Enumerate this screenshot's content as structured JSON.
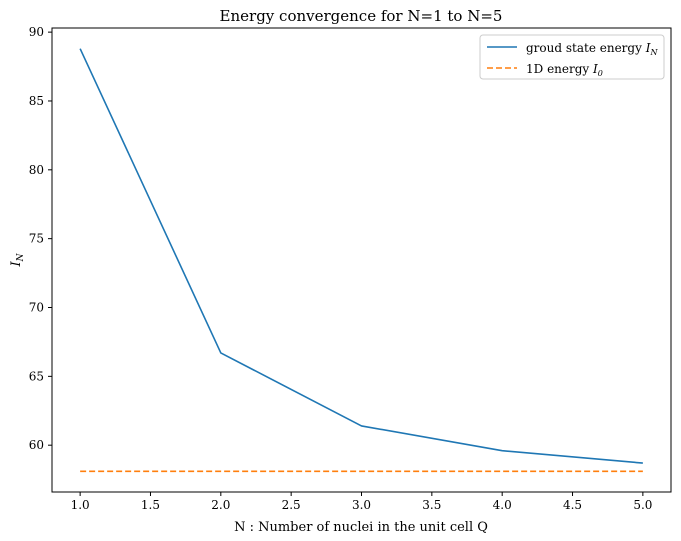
{
  "chart_data": {
    "type": "line",
    "title": "Energy convergence for N=1 to N=5",
    "xlabel": "N : Number of nuclei in the unit cell Q",
    "ylabel": {
      "main": "I",
      "sub": "N"
    },
    "xlim": [
      0.8,
      5.2
    ],
    "ylim": [
      56.6,
      90.3
    ],
    "xticks": [
      1.0,
      1.5,
      2.0,
      2.5,
      3.0,
      3.5,
      4.0,
      4.5,
      5.0
    ],
    "yticks": [
      60,
      65,
      70,
      75,
      80,
      85,
      90
    ],
    "legend_position": "top-right",
    "grid": false,
    "series": [
      {
        "name": "groud state energy",
        "legend_symbol": "I",
        "legend_sub": "N",
        "style": "solid",
        "color": "#1f77b4",
        "x": [
          1,
          2,
          3,
          4,
          5
        ],
        "y": [
          88.8,
          66.7,
          61.4,
          59.6,
          58.7
        ]
      },
      {
        "name": "1D energy",
        "legend_symbol": "I",
        "legend_sub": "0",
        "style": "dashed",
        "color": "#ff7f0e",
        "x": [
          1,
          5
        ],
        "y": [
          58.1,
          58.1
        ]
      }
    ]
  }
}
